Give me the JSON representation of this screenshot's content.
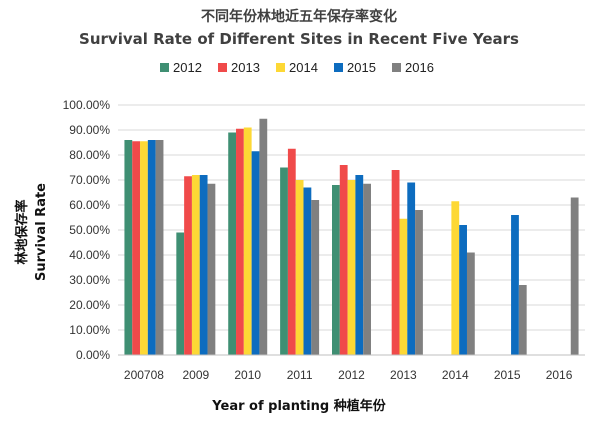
{
  "chart_data": {
    "type": "bar",
    "title": "不同年份林地近五年保存率变化",
    "subtitle": "Survival Rate of Different Sites in Recent Five Years",
    "xlabel": "Year of planting 种植年份",
    "ylabel_cn": "林地保存率",
    "ylabel_en": "Survival Rate",
    "categories": [
      "200708",
      "2009",
      "2010",
      "2011",
      "2012",
      "2013",
      "2014",
      "2015",
      "2016"
    ],
    "ylim": [
      0,
      100
    ],
    "yticks": [
      "0.00%",
      "10.00%",
      "20.00%",
      "30.00%",
      "40.00%",
      "50.00%",
      "60.00%",
      "70.00%",
      "80.00%",
      "90.00%",
      "100.00%"
    ],
    "grid": true,
    "legend_position": "top-center",
    "series": [
      {
        "name": "2012",
        "color": "#3f8f73",
        "values": [
          86,
          49,
          89,
          75,
          68,
          null,
          null,
          null,
          null
        ]
      },
      {
        "name": "2013",
        "color": "#f04a4a",
        "values": [
          85.5,
          71.5,
          90.5,
          82.5,
          76,
          74,
          null,
          null,
          null
        ]
      },
      {
        "name": "2014",
        "color": "#fdd835",
        "values": [
          85.5,
          72,
          91,
          70,
          70,
          54.5,
          61.5,
          null,
          null
        ]
      },
      {
        "name": "2015",
        "color": "#0d6cbf",
        "values": [
          86,
          72,
          81.5,
          67,
          72,
          69,
          52,
          56,
          null
        ]
      },
      {
        "name": "2016",
        "color": "#808080",
        "values": [
          86,
          68.5,
          94.5,
          62,
          68.5,
          58,
          41,
          28,
          63
        ]
      }
    ]
  }
}
